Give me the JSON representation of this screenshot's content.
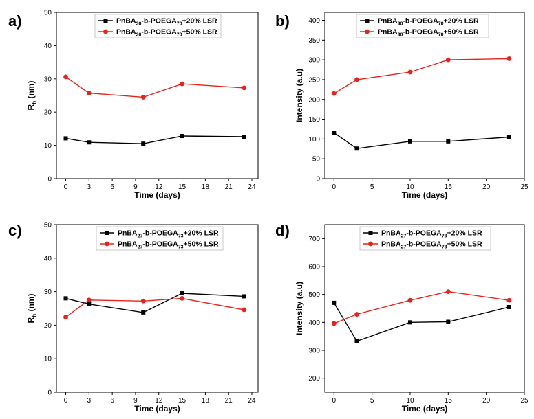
{
  "chart_data": [
    {
      "panel": "a)",
      "type": "line",
      "xlabel": "Time (days)",
      "ylabel": "R_h (nm)",
      "xlim": [
        -1.2,
        24.8
      ],
      "xticks": [
        0,
        3,
        6,
        9,
        12,
        15,
        18,
        21,
        24
      ],
      "ylim": [
        0,
        50
      ],
      "yticks": [
        0,
        10,
        20,
        30,
        40,
        50
      ],
      "legend_position": "top-right",
      "series": [
        {
          "name": "PnBA30-b-POEGA70+20% LSR",
          "legend": {
            "pre": "PnBA",
            "sub1": "30",
            "mid": "-b-POEGA",
            "sub2": "70",
            "post": "+20% LSR"
          },
          "color": "#000000",
          "marker": "square",
          "x": [
            0,
            3,
            10,
            15,
            23
          ],
          "y": [
            12.1,
            10.9,
            10.5,
            12.8,
            12.6
          ]
        },
        {
          "name": "PnBA30-b-POEGA70+50% LSR",
          "legend": {
            "pre": "PnBA",
            "sub1": "30",
            "mid": "-b-POEGA",
            "sub2": "70",
            "post": "+50% LSR"
          },
          "color": "#e8221c",
          "marker": "circle",
          "x": [
            0,
            3,
            10,
            15,
            23
          ],
          "y": [
            30.6,
            25.7,
            24.5,
            28.5,
            27.3
          ]
        }
      ]
    },
    {
      "panel": "b)",
      "type": "line",
      "xlabel": "Time (days)",
      "ylabel": "Intensity (a.u)",
      "xlim": [
        -1.2,
        25.0
      ],
      "xticks": [
        0,
        5,
        10,
        15,
        20,
        25
      ],
      "ylim": [
        0,
        420
      ],
      "yticks": [
        0,
        50,
        100,
        150,
        200,
        250,
        300,
        350,
        400
      ],
      "legend_position": "top-right",
      "series": [
        {
          "name": "PnBA30-b-POEGA70+20% LSR",
          "legend": {
            "pre": "PnBA",
            "sub1": "30",
            "mid": "-b-POEGA",
            "sub2": "70",
            "post": "+20% LSR"
          },
          "color": "#000000",
          "marker": "square",
          "x": [
            0,
            3,
            10,
            15,
            23
          ],
          "y": [
            116,
            76,
            94,
            94,
            105
          ]
        },
        {
          "name": "PnBA30-b-POEGA70+50% LSR",
          "legend": {
            "pre": "PnBA",
            "sub1": "30",
            "mid": "-b-POEGA",
            "sub2": "70",
            "post": "+50% LSR"
          },
          "color": "#e8221c",
          "marker": "circle",
          "x": [
            0,
            3,
            10,
            15,
            23
          ],
          "y": [
            215,
            250,
            269,
            300,
            303
          ]
        }
      ]
    },
    {
      "panel": "c)",
      "type": "line",
      "xlabel": "Time (days)",
      "ylabel": "R_h (nm)",
      "xlim": [
        -1.2,
        24.8
      ],
      "xticks": [
        0,
        3,
        6,
        9,
        12,
        15,
        18,
        21,
        24
      ],
      "ylim": [
        0,
        50
      ],
      "yticks": [
        0,
        10,
        20,
        30,
        40,
        50
      ],
      "legend_position": "top-right",
      "series": [
        {
          "name": "PnBA27-b-POEGA73+20% LSR",
          "legend": {
            "pre": "PnBA",
            "sub1": "27",
            "mid": "-b-POEGA",
            "sub2": "73",
            "post": "+20% LSR"
          },
          "color": "#000000",
          "marker": "square",
          "x": [
            0,
            3,
            10,
            15,
            23
          ],
          "y": [
            28.0,
            26.3,
            23.8,
            29.5,
            28.6
          ]
        },
        {
          "name": "PnBA27-b-POEGA73+50% LSR",
          "legend": {
            "pre": "PnBA",
            "sub1": "27",
            "mid": "-b-POEGA",
            "sub2": "73",
            "post": "+50% LSR"
          },
          "color": "#e8221c",
          "marker": "circle",
          "x": [
            0,
            3,
            10,
            15,
            23
          ],
          "y": [
            22.4,
            27.5,
            27.2,
            28.0,
            24.6
          ]
        }
      ]
    },
    {
      "panel": "d)",
      "type": "line",
      "xlabel": "Time (days)",
      "ylabel": "Intensity (a.u)",
      "xlim": [
        -1.2,
        25.0
      ],
      "xticks": [
        0,
        5,
        10,
        15,
        20,
        25
      ],
      "ylim": [
        150,
        750
      ],
      "yticks": [
        200,
        300,
        400,
        500,
        600,
        700
      ],
      "legend_position": "top-right",
      "series": [
        {
          "name": "PnBA27-b-POEGA73+20% LSR",
          "legend": {
            "pre": "PnBA",
            "sub1": "27",
            "mid": "-b-POEGA",
            "sub2": "73",
            "post": "+20% LSR"
          },
          "color": "#000000",
          "marker": "square",
          "x": [
            0,
            3,
            10,
            15,
            23
          ],
          "y": [
            470,
            333,
            400,
            402,
            455
          ]
        },
        {
          "name": "PnBA27-b-POEGA73+50% LSR",
          "legend": {
            "pre": "PnBA",
            "sub1": "27",
            "mid": "-b-POEGA",
            "sub2": "73",
            "post": "+50% LSR"
          },
          "color": "#e8221c",
          "marker": "circle",
          "x": [
            0,
            3,
            10,
            15,
            23
          ],
          "y": [
            396,
            429,
            479,
            510,
            479
          ]
        }
      ]
    }
  ]
}
